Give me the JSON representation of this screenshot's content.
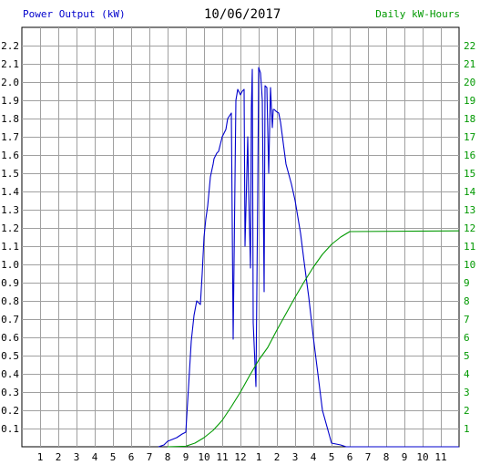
{
  "header": {
    "left_title": "Power Output (kW)",
    "date": "10/06/2017",
    "right_title": "Daily kW-Hours"
  },
  "chart_data": {
    "type": "line",
    "x_tick_labels": [
      "1",
      "2",
      "3",
      "4",
      "5",
      "6",
      "7",
      "8",
      "9",
      "10",
      "11",
      "12",
      "1",
      "2",
      "3",
      "4",
      "5",
      "6",
      "7",
      "8",
      "9",
      "10",
      "11"
    ],
    "y_left_ticks": [
      "0.1",
      "0.2",
      "0.3",
      "0.4",
      "0.5",
      "0.6",
      "0.7",
      "0.8",
      "0.9",
      "1.0",
      "1.1",
      "1.2",
      "1.3",
      "1.4",
      "1.5",
      "1.6",
      "1.7",
      "1.8",
      "1.9",
      "2.0",
      "2.1",
      "2.2"
    ],
    "y_right_ticks": [
      "1",
      "2",
      "3",
      "4",
      "5",
      "6",
      "7",
      "8",
      "9",
      "10",
      "11",
      "12",
      "13",
      "14",
      "15",
      "16",
      "17",
      "18",
      "19",
      "20",
      "21",
      "22"
    ],
    "ylim_left": [
      0,
      2.3
    ],
    "ylim_right": [
      0,
      23
    ],
    "xlim_hours": [
      0,
      24
    ],
    "grid": true,
    "colors": {
      "power": "#0000cc",
      "energy": "#009900",
      "grid": "#a0a0a0",
      "left_axis": "#000000",
      "right_axis": "#009900"
    },
    "series": [
      {
        "name": "Power Output (kW)",
        "axis": "left",
        "x": [
          7.5,
          7.8,
          8.0,
          8.5,
          8.8,
          9.0,
          9.3,
          9.45,
          9.6,
          9.8,
          9.9,
          10.0,
          10.1,
          10.2,
          10.35,
          10.5,
          10.55,
          10.6,
          10.65,
          10.7,
          10.8,
          11.0,
          11.2,
          11.3,
          11.5,
          11.6,
          11.75,
          11.85,
          12.0,
          12.1,
          12.2,
          12.25,
          12.4,
          12.45,
          12.55,
          12.6,
          12.65,
          12.7,
          12.85,
          12.95,
          13.0,
          13.1,
          13.15,
          13.2,
          13.3,
          13.35,
          13.45,
          13.55,
          13.65,
          13.75,
          13.8,
          13.85,
          13.95,
          14.1,
          14.2,
          14.5,
          14.8,
          15.0,
          15.3,
          15.5,
          15.75,
          16.0,
          16.5,
          17.0,
          17.5,
          17.8,
          18.0,
          18.2,
          24.0
        ],
        "y": [
          0,
          0.01,
          0.03,
          0.05,
          0.07,
          0.08,
          0.58,
          0.72,
          0.8,
          0.78,
          0.95,
          1.15,
          1.25,
          1.32,
          1.48,
          1.55,
          1.58,
          1.59,
          1.6,
          1.61,
          1.62,
          1.7,
          1.74,
          1.8,
          1.83,
          0.59,
          1.9,
          1.96,
          1.93,
          1.95,
          1.96,
          1.1,
          1.7,
          1.4,
          0.98,
          1.86,
          2.07,
          0.68,
          0.33,
          1.4,
          2.08,
          2.05,
          1.98,
          1.9,
          0.85,
          1.98,
          1.97,
          1.5,
          1.97,
          1.75,
          1.85,
          1.85,
          1.84,
          1.83,
          1.78,
          1.55,
          1.44,
          1.35,
          1.17,
          1.01,
          0.82,
          0.6,
          0.2,
          0.02,
          0.01,
          0,
          0,
          0,
          0
        ]
      },
      {
        "name": "Daily kW-Hours",
        "axis": "right",
        "x": [
          8.0,
          9.0,
          9.5,
          10.0,
          10.5,
          11.0,
          11.5,
          12.0,
          12.5,
          13.0,
          13.5,
          14.0,
          14.5,
          15.0,
          15.5,
          16.0,
          16.5,
          17.0,
          17.5,
          18.0,
          24.0
        ],
        "y": [
          0,
          0.03,
          0.2,
          0.5,
          0.9,
          1.45,
          2.2,
          3.0,
          3.9,
          4.75,
          5.45,
          6.4,
          7.3,
          8.2,
          9.05,
          9.85,
          10.55,
          11.1,
          11.5,
          11.8,
          11.84
        ]
      }
    ]
  }
}
